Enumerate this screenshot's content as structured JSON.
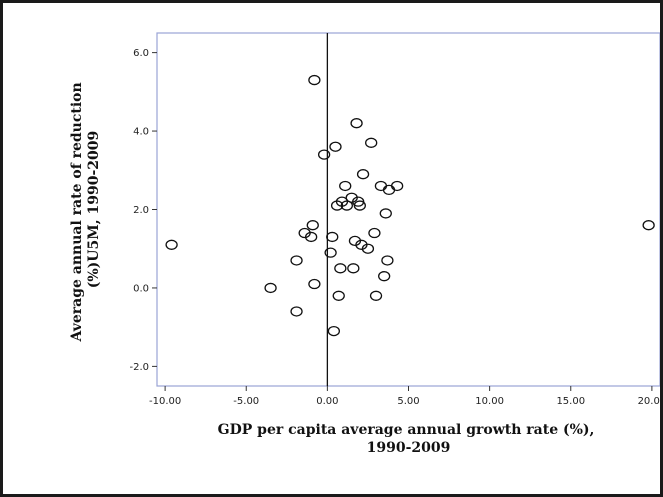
{
  "chart_data": {
    "type": "scatter",
    "xlabel_lines": [
      "GDP per capita average annual growth rate (%),",
      "1990-2009"
    ],
    "ylabel_lines": [
      "Average annual rate of reduction",
      "(%)U5M, 1990-2009"
    ],
    "xlim": [
      -10.5,
      20.5
    ],
    "ylim": [
      -2.5,
      6.5
    ],
    "x_ticks": [
      -10,
      -5,
      0,
      5,
      10,
      15,
      20
    ],
    "x_tick_labels": [
      "-10.00",
      "-5.00",
      "0.00",
      "5.00",
      "10.00",
      "15.00",
      "20.00"
    ],
    "y_ticks": [
      -2,
      0,
      2,
      4,
      6
    ],
    "y_tick_labels": [
      "-2.0",
      "0.0",
      "2.0",
      "4.0",
      "6.0"
    ],
    "reference_line_x": 0,
    "grid": false,
    "colors": {
      "plot_bg": "#ffffff",
      "plot_border": "#9aa3d6",
      "marker": "#111111",
      "frame": "#1a1a1a"
    },
    "points": [
      {
        "x": -9.6,
        "y": 1.1
      },
      {
        "x": -3.5,
        "y": 0.0
      },
      {
        "x": -1.9,
        "y": 0.7
      },
      {
        "x": -1.9,
        "y": -0.6
      },
      {
        "x": -1.4,
        "y": 1.4
      },
      {
        "x": -1.0,
        "y": 1.3
      },
      {
        "x": -0.9,
        "y": 1.6
      },
      {
        "x": -0.8,
        "y": 0.1
      },
      {
        "x": -0.8,
        "y": 5.3
      },
      {
        "x": -0.2,
        "y": 3.4
      },
      {
        "x": 0.2,
        "y": 0.9
      },
      {
        "x": 0.3,
        "y": 1.3
      },
      {
        "x": 0.4,
        "y": -1.1
      },
      {
        "x": 0.5,
        "y": 3.6
      },
      {
        "x": 0.6,
        "y": 2.1
      },
      {
        "x": 0.7,
        "y": -0.2
      },
      {
        "x": 0.8,
        "y": 0.5
      },
      {
        "x": 0.9,
        "y": 2.2
      },
      {
        "x": 1.1,
        "y": 2.6
      },
      {
        "x": 1.2,
        "y": 2.1
      },
      {
        "x": 1.5,
        "y": 2.3
      },
      {
        "x": 1.6,
        "y": 0.5
      },
      {
        "x": 1.7,
        "y": 1.2
      },
      {
        "x": 1.8,
        "y": 4.2
      },
      {
        "x": 1.9,
        "y": 2.2
      },
      {
        "x": 2.0,
        "y": 2.1
      },
      {
        "x": 2.1,
        "y": 1.1
      },
      {
        "x": 2.2,
        "y": 2.9
      },
      {
        "x": 2.5,
        "y": 1.0
      },
      {
        "x": 2.7,
        "y": 3.7
      },
      {
        "x": 2.9,
        "y": 1.4
      },
      {
        "x": 3.0,
        "y": -0.2
      },
      {
        "x": 3.3,
        "y": 2.6
      },
      {
        "x": 3.5,
        "y": 0.3
      },
      {
        "x": 3.6,
        "y": 1.9
      },
      {
        "x": 3.7,
        "y": 0.7
      },
      {
        "x": 3.8,
        "y": 2.5
      },
      {
        "x": 4.3,
        "y": 2.6
      },
      {
        "x": 19.8,
        "y": 1.6
      }
    ]
  }
}
